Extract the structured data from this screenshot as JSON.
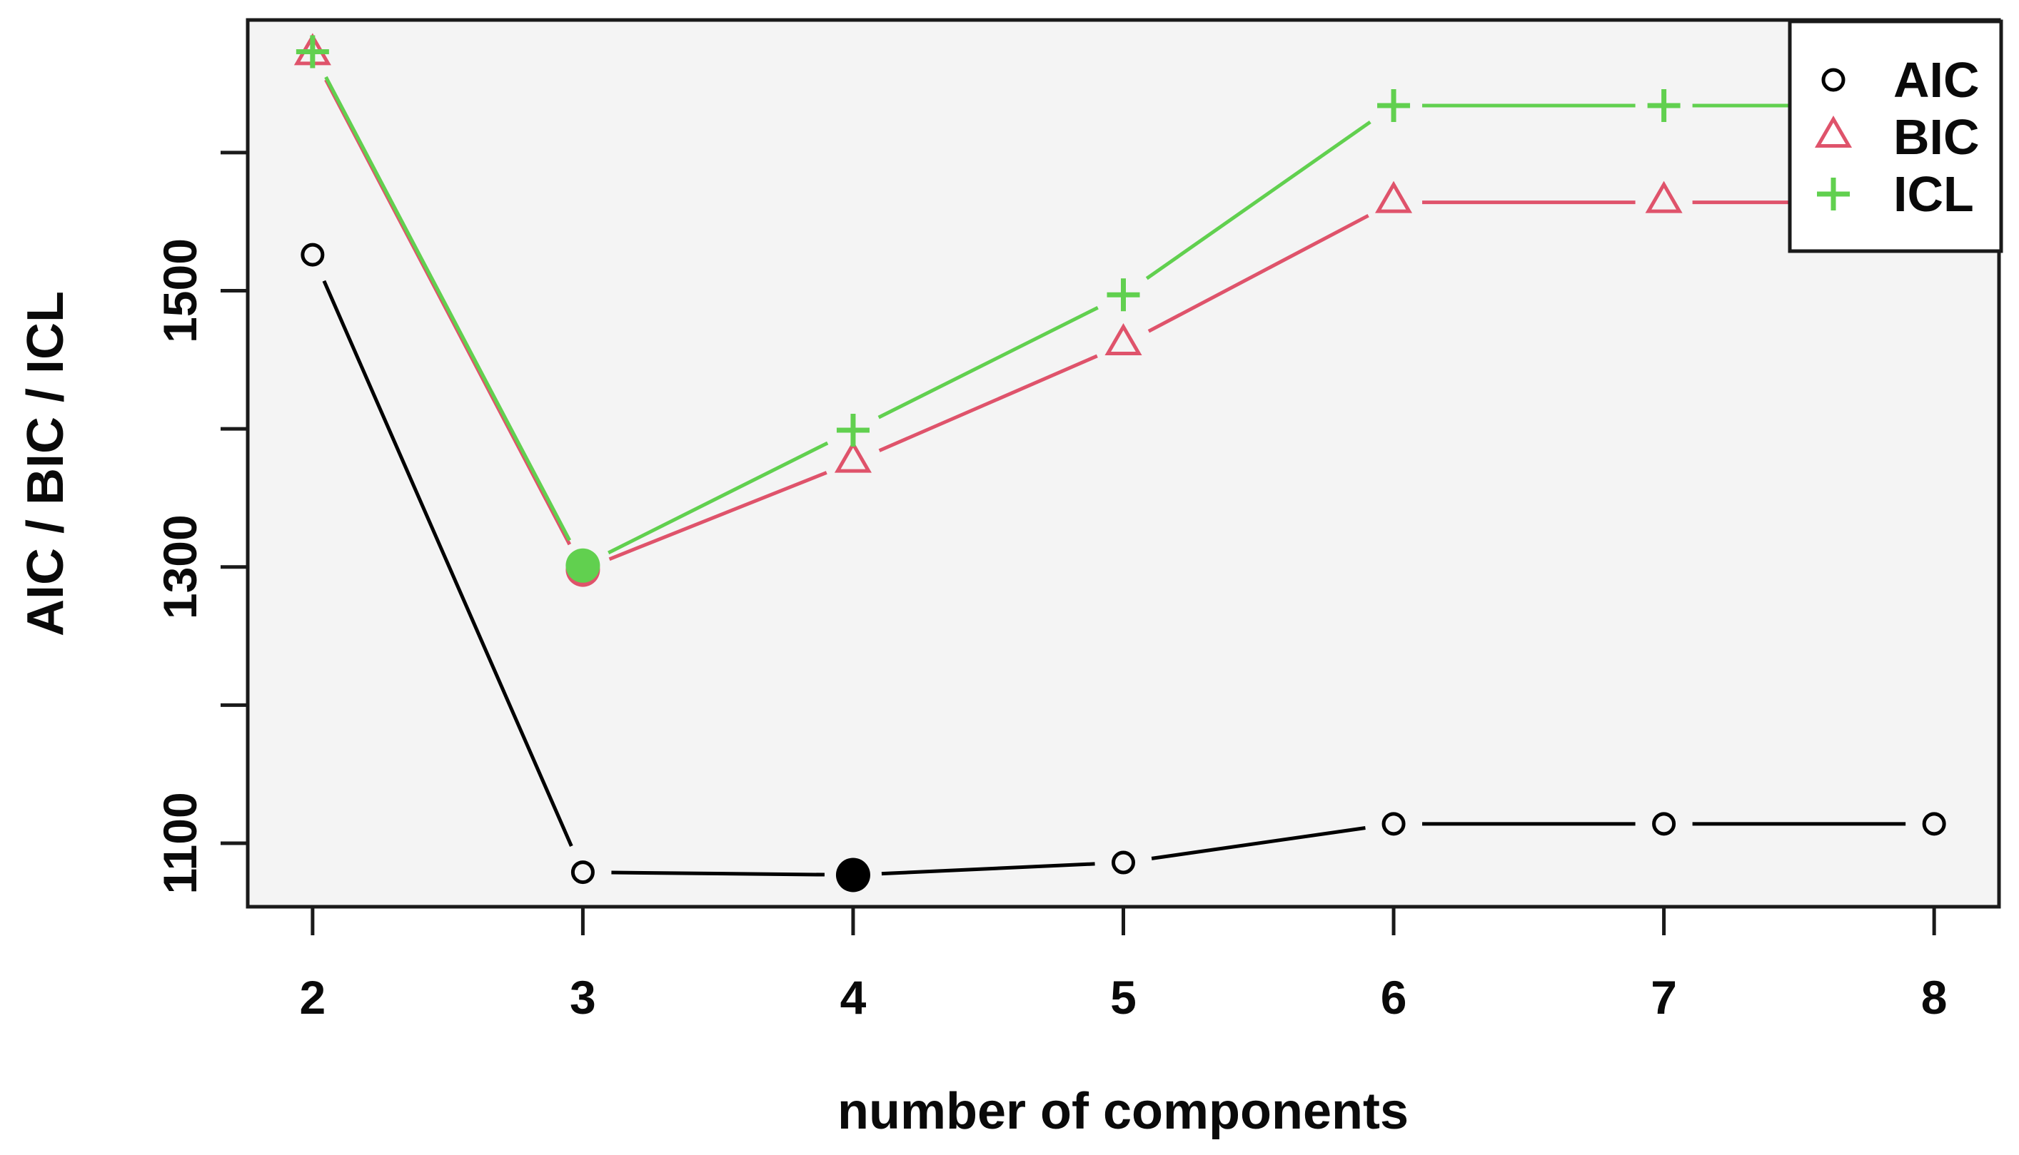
{
  "figure": {
    "background": "#ffffff",
    "panel_background": "#f4f4f4",
    "frame_color": "#1a1a1a",
    "text_color": "#0a0a0a"
  },
  "chart_data": {
    "type": "line",
    "title": "",
    "xlabel": "number of components",
    "ylabel": "AIC / BIC / ICL",
    "x": [
      2,
      3,
      4,
      5,
      6,
      7,
      8
    ],
    "xlim": [
      1.76,
      8.24
    ],
    "ylim": [
      1054,
      1696
    ],
    "grid": false,
    "x_ticks": [
      2,
      3,
      4,
      5,
      6,
      7,
      8
    ],
    "x_tick_labels": [
      "2",
      "3",
      "4",
      "5",
      "6",
      "7",
      "8"
    ],
    "y_ticks": [
      1100,
      1200,
      1300,
      1400,
      1500,
      1600
    ],
    "y_tick_labels": [
      "1100",
      "",
      "1300",
      "",
      "1500",
      ""
    ],
    "series": [
      {
        "name": "AIC",
        "color": "#000000",
        "marker": "circle",
        "values": [
          1526,
          1079,
          1077,
          1086,
          1114,
          1114,
          1114
        ]
      },
      {
        "name": "BIC",
        "color": "#df536b",
        "marker": "triangle",
        "values": [
          1671,
          1298,
          1376,
          1461,
          1564,
          1564,
          1564
        ]
      },
      {
        "name": "ICL",
        "color": "#61d04f",
        "marker": "plus",
        "values": [
          1673,
          1301,
          1399,
          1497,
          1634,
          1634,
          1634
        ]
      }
    ],
    "min_markers": [
      {
        "series": "BIC",
        "x": 3,
        "value": 1298
      },
      {
        "series": "ICL",
        "x": 3,
        "value": 1301
      },
      {
        "series": "AIC",
        "x": 4,
        "value": 1077
      }
    ],
    "legend": {
      "position": "top-right",
      "entries": [
        "AIC",
        "BIC",
        "ICL"
      ]
    }
  }
}
